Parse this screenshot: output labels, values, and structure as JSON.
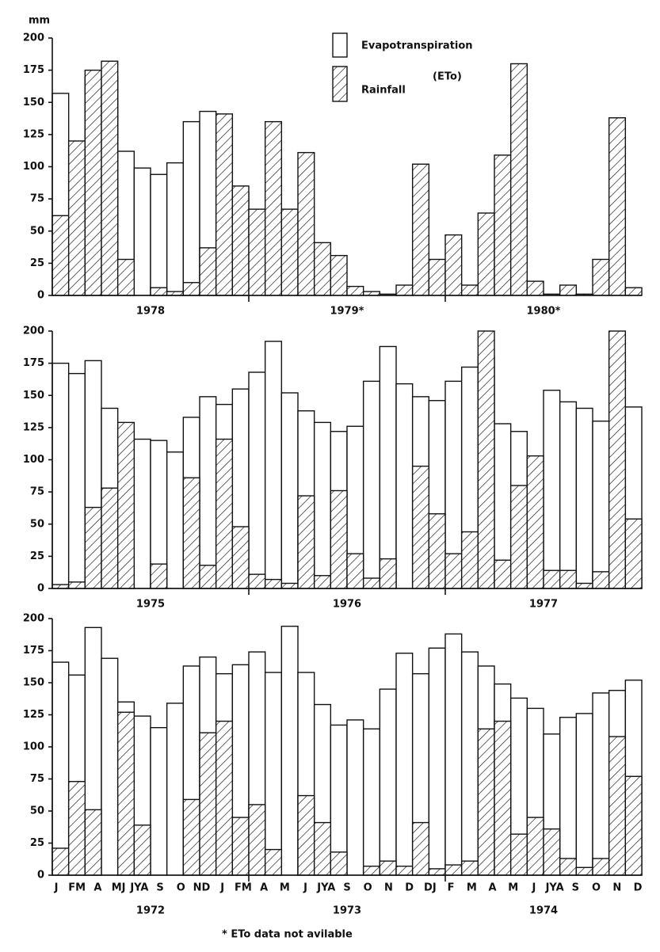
{
  "chart_data": [
    {
      "type": "bar",
      "y_unit": "mm",
      "legend_note": "(ETo)",
      "years": [
        "1978",
        "1979*",
        "1980*"
      ],
      "ylim": [
        0,
        200
      ],
      "yticks": [
        0,
        25,
        50,
        75,
        100,
        125,
        150,
        175,
        200
      ],
      "series": [
        {
          "name": "Evapotranspiration",
          "values": [
            157,
            115,
            170,
            170,
            112,
            99,
            94,
            103,
            135,
            143,
            140,
            80,
            null,
            null,
            null,
            null,
            null,
            null,
            null,
            null,
            null,
            null,
            null,
            null,
            null,
            null,
            null,
            null,
            null,
            null,
            null,
            null,
            null,
            null,
            null,
            null
          ]
        },
        {
          "name": "Rainfall",
          "hatch": true,
          "values": [
            62,
            120,
            175,
            182,
            28,
            0,
            6,
            3,
            10,
            37,
            141,
            85,
            67,
            135,
            67,
            111,
            41,
            31,
            7,
            3,
            1,
            8,
            102,
            28,
            47,
            8,
            64,
            109,
            180,
            11,
            1,
            8,
            1,
            28,
            138,
            6
          ]
        }
      ]
    },
    {
      "type": "bar",
      "years": [
        "1975",
        "1976",
        "1977"
      ],
      "ylim": [
        0,
        200
      ],
      "yticks": [
        0,
        25,
        50,
        75,
        100,
        125,
        150,
        175,
        200
      ],
      "series": [
        {
          "values": [
            175,
            167,
            177,
            140,
            125,
            116,
            115,
            106,
            133,
            149,
            143,
            155,
            168,
            192,
            152,
            138,
            129,
            122,
            126,
            161,
            188,
            159,
            149,
            146,
            161,
            172,
            180,
            128,
            122,
            100,
            154,
            145,
            140,
            130,
            180,
            141
          ]
        },
        {
          "hatch": true,
          "values": [
            3,
            5,
            63,
            78,
            129,
            0,
            19,
            0,
            86,
            18,
            116,
            48,
            11,
            7,
            4,
            72,
            10,
            76,
            27,
            8,
            23,
            0,
            95,
            58,
            27,
            44,
            200,
            22,
            80,
            103,
            14,
            14,
            4,
            13,
            200,
            54
          ]
        }
      ]
    },
    {
      "type": "bar",
      "years": [
        "1972",
        "1973",
        "1974"
      ],
      "month_labels": [
        "J",
        "FM",
        "A",
        "MJ",
        "JYA",
        "S",
        "O",
        "ND",
        "J",
        "FM",
        "A",
        "M",
        "J",
        "JYA",
        "S",
        "O",
        "N",
        "D",
        "DJ",
        "F",
        "M",
        "A",
        "M",
        "J",
        "JYA",
        "S",
        "O",
        "N",
        "D"
      ],
      "ylim": [
        0,
        200
      ],
      "yticks": [
        0,
        25,
        50,
        75,
        100,
        125,
        150,
        175,
        200
      ],
      "series": [
        {
          "values": [
            166,
            156,
            193,
            169,
            135,
            124,
            115,
            134,
            163,
            170,
            157,
            164,
            174,
            158,
            194,
            158,
            133,
            117,
            121,
            114,
            145,
            173,
            157,
            177,
            188,
            174,
            163,
            149,
            138,
            130,
            110,
            123,
            126,
            142,
            144,
            152
          ]
        },
        {
          "hatch": true,
          "values": [
            21,
            73,
            51,
            0,
            127,
            39,
            0,
            0,
            59,
            111,
            120,
            45,
            55,
            20,
            0,
            62,
            41,
            18,
            0,
            7,
            11,
            7,
            41,
            5,
            8,
            11,
            114,
            120,
            32,
            45,
            36,
            13,
            6,
            13,
            108,
            77
          ]
        }
      ]
    }
  ],
  "footnote": "* ETo data not avilable"
}
